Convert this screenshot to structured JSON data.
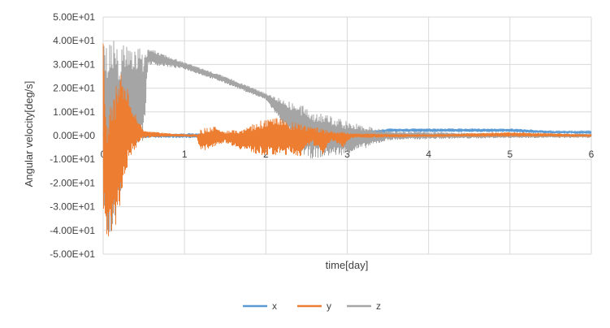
{
  "chart_data": {
    "type": "line",
    "title": "",
    "xlabel": "time[day]",
    "ylabel": "Angular velocity[deg/s]",
    "xlim": [
      0,
      6
    ],
    "ylim": [
      -50,
      50
    ],
    "x_ticks": [
      0,
      1,
      2,
      3,
      4,
      5,
      6
    ],
    "x_tick_labels": [
      "0",
      "1",
      "2",
      "3",
      "4",
      "5",
      "6"
    ],
    "y_ticks": [
      50,
      40,
      30,
      20,
      10,
      0,
      -10,
      -20,
      -30,
      -40,
      -50
    ],
    "y_tick_labels": [
      "5.00E+01",
      "4.00E+01",
      "3.00E+01",
      "2.00E+01",
      "1.00E+01",
      "0.00E+00",
      "-1.00E+01",
      "-2.00E+01",
      "-3.00E+01",
      "-4.00E+01",
      "-5.00E+01"
    ],
    "grid": true,
    "legend_position": "bottom",
    "series": [
      {
        "name": "x",
        "color": "#5b9bd5",
        "envelope": [
          {
            "x": 0.0,
            "lo": -1,
            "hi": 1
          },
          {
            "x": 1.0,
            "lo": -1,
            "hi": 1
          },
          {
            "x": 2.0,
            "lo": -1,
            "hi": 1
          },
          {
            "x": 3.0,
            "lo": -1.5,
            "hi": 1.5
          },
          {
            "x": 3.4,
            "lo": 1,
            "hi": 2.5
          },
          {
            "x": 3.5,
            "lo": 1.5,
            "hi": 3
          },
          {
            "x": 4.0,
            "lo": 1.5,
            "hi": 3
          },
          {
            "x": 4.5,
            "lo": 1.5,
            "hi": 3
          },
          {
            "x": 5.0,
            "lo": 1.5,
            "hi": 3
          },
          {
            "x": 5.3,
            "lo": 1,
            "hi": 2.5
          },
          {
            "x": 5.5,
            "lo": 1,
            "hi": 2
          },
          {
            "x": 6.0,
            "lo": 1,
            "hi": 1.8
          }
        ]
      },
      {
        "name": "y",
        "color": "#ed7d31",
        "envelope": [
          {
            "x": 0.0,
            "lo": -42,
            "hi": 42
          },
          {
            "x": 0.05,
            "lo": -43,
            "hi": 10
          },
          {
            "x": 0.12,
            "lo": -42,
            "hi": 18
          },
          {
            "x": 0.2,
            "lo": -32,
            "hi": 25
          },
          {
            "x": 0.25,
            "lo": -20,
            "hi": 27
          },
          {
            "x": 0.3,
            "lo": -14,
            "hi": 20
          },
          {
            "x": 0.35,
            "lo": -8,
            "hi": 12
          },
          {
            "x": 0.45,
            "lo": -3,
            "hi": 6
          },
          {
            "x": 0.5,
            "lo": -1,
            "hi": 2
          },
          {
            "x": 0.8,
            "lo": -0.5,
            "hi": 1
          },
          {
            "x": 1.15,
            "lo": -0.5,
            "hi": 0.5
          },
          {
            "x": 1.2,
            "lo": -7,
            "hi": 3
          },
          {
            "x": 1.4,
            "lo": -4,
            "hi": 4
          },
          {
            "x": 1.5,
            "lo": -3,
            "hi": 2
          },
          {
            "x": 1.7,
            "lo": -6,
            "hi": 3
          },
          {
            "x": 1.9,
            "lo": -8,
            "hi": 6
          },
          {
            "x": 2.1,
            "lo": -9,
            "hi": 8
          },
          {
            "x": 2.3,
            "lo": -8,
            "hi": 6
          },
          {
            "x": 2.45,
            "lo": -9,
            "hi": 5
          },
          {
            "x": 2.55,
            "lo": -3,
            "hi": 4
          },
          {
            "x": 2.7,
            "lo": -8,
            "hi": 3
          },
          {
            "x": 2.8,
            "lo": -2,
            "hi": 2
          },
          {
            "x": 2.95,
            "lo": -5,
            "hi": 2
          },
          {
            "x": 3.05,
            "lo": -1,
            "hi": 1
          },
          {
            "x": 4.0,
            "lo": -0.5,
            "hi": 0.5
          },
          {
            "x": 5.0,
            "lo": -0.5,
            "hi": 1.5
          },
          {
            "x": 6.0,
            "lo": -0.5,
            "hi": 0.5
          }
        ]
      },
      {
        "name": "z",
        "color": "#a5a5a5",
        "envelope": [
          {
            "x": 0.0,
            "lo": -42,
            "hi": 42
          },
          {
            "x": 0.15,
            "lo": -40,
            "hi": 40
          },
          {
            "x": 0.3,
            "lo": -5,
            "hi": 39
          },
          {
            "x": 0.5,
            "lo": -2,
            "hi": 36
          },
          {
            "x": 0.55,
            "lo": 30,
            "hi": 37
          },
          {
            "x": 1.0,
            "lo": 28,
            "hi": 31
          },
          {
            "x": 1.5,
            "lo": 22,
            "hi": 25
          },
          {
            "x": 2.0,
            "lo": 15,
            "hi": 18
          },
          {
            "x": 2.5,
            "lo": -10,
            "hi": 12
          },
          {
            "x": 3.0,
            "lo": -8,
            "hi": 6
          },
          {
            "x": 3.5,
            "lo": -2,
            "hi": 2
          },
          {
            "x": 4.0,
            "lo": -1.5,
            "hi": 1.5
          },
          {
            "x": 5.0,
            "lo": -1,
            "hi": 1
          },
          {
            "x": 5.3,
            "lo": -1,
            "hi": 1
          },
          {
            "x": 6.0,
            "lo": -1,
            "hi": 1
          }
        ]
      }
    ]
  }
}
